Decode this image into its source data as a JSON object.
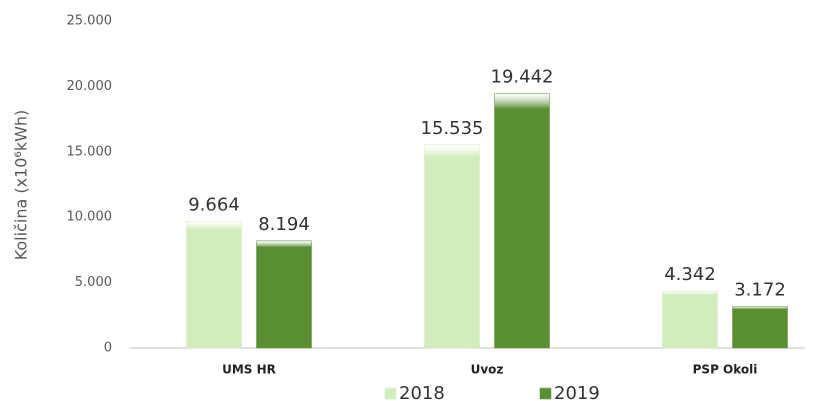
{
  "chart_data": {
    "type": "bar",
    "y_label": "Količina (x10⁶kWh)",
    "categories": [
      "UMS HR",
      "Uvoz",
      "PSP Okoli"
    ],
    "series": [
      {
        "name": "2018",
        "color": "#d2ecbe",
        "values": [
          9664,
          15535,
          4342
        ],
        "value_labels": [
          "9.664",
          "15.535",
          "4.342"
        ]
      },
      {
        "name": "2019",
        "color": "#5b8f34",
        "values": [
          8194,
          19442,
          3172
        ],
        "value_labels": [
          "8.194",
          "19.442",
          "3.172"
        ]
      }
    ],
    "ylim": [
      0,
      25000
    ],
    "yticks": [
      0,
      {
        "value": 5000,
        "label": "5.000"
      },
      {
        "value": 10000,
        "label": "10.000"
      },
      {
        "value": 15000,
        "label": "15.000"
      },
      {
        "value": 20000,
        "label": "20.000"
      },
      {
        "value": 25000,
        "label": "25.000"
      }
    ],
    "grid": false,
    "legend": "bottom"
  }
}
